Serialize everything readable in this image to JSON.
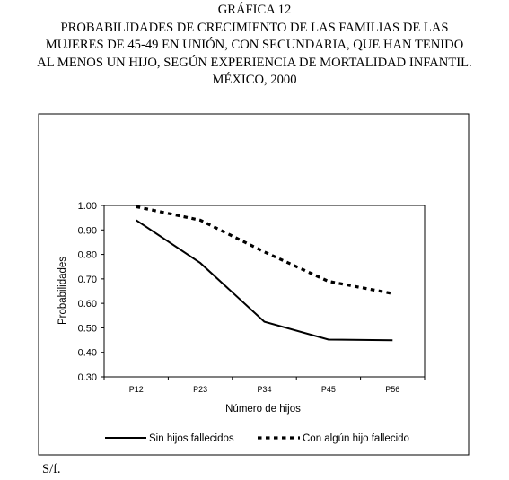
{
  "heading": {
    "label": "GRÁFICA 12",
    "lines": [
      "PROBABILIDADES DE CRECIMIENTO DE LAS FAMILIAS DE LAS",
      "MUJERES DE 45-49 EN UNIÓN, CON SECUNDARIA, QUE HAN TENIDO",
      "AL MENOS UN HIJO, SEGÚN EXPERIENCIA DE MORTALIDAD INFANTIL.",
      "MÉXICO, 2000"
    ]
  },
  "source": "S/f.",
  "chart_data": {
    "type": "line",
    "xlabel": "Número de hijos",
    "ylabel": "Probabilidades",
    "categories": [
      "P12",
      "P23",
      "P34",
      "P45",
      "P56"
    ],
    "y_ticks": [
      "1.00",
      "0.90",
      "0.80",
      "0.70",
      "0.60",
      "0.50",
      "0.40",
      "0.30"
    ],
    "ylim": [
      0.3,
      1.0
    ],
    "grid": false,
    "legend_position": "bottom",
    "series": [
      {
        "name": "Sin hijos fallecidos",
        "style": "solid",
        "color": "#000000",
        "values": [
          0.94,
          0.765,
          0.525,
          0.452,
          0.449
        ]
      },
      {
        "name": "Con algún hijo fallecido",
        "style": "dotted",
        "color": "#000000",
        "values": [
          0.995,
          0.94,
          0.81,
          0.69,
          0.64
        ]
      }
    ]
  }
}
